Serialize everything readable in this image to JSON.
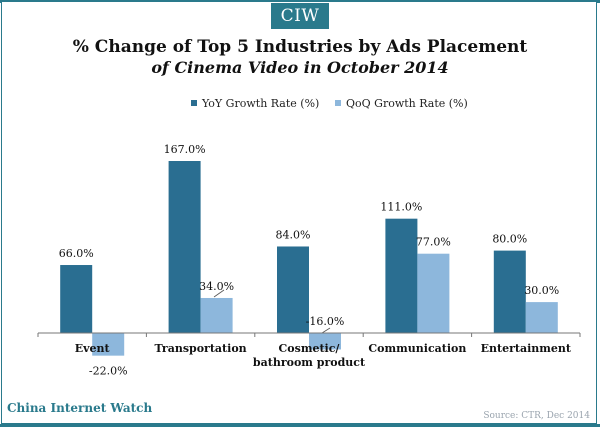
{
  "header": {
    "logo": "CIW",
    "title_line1": "% Change of Top 5 Industries by Ads Placement",
    "title_line2": "of Cinema Video in October 2014"
  },
  "colors": {
    "yoy": "#2a6e91",
    "qoq": "#8db7dc",
    "brand": "#2a7a8c"
  },
  "chart_data": {
    "type": "bar",
    "categories": [
      [
        "Event"
      ],
      [
        "Transportation"
      ],
      [
        "Cosmetic/",
        "bathroom product"
      ],
      [
        "Communication"
      ],
      [
        "Entertainment"
      ]
    ],
    "series": [
      {
        "name": "YoY Growth Rate (%)",
        "values": [
          66.0,
          167.0,
          84.0,
          111.0,
          80.0
        ]
      },
      {
        "name": "QoQ Growth Rate (%)",
        "values": [
          -22.0,
          34.0,
          -16.0,
          77.0,
          30.0
        ]
      }
    ],
    "data_labels": [
      [
        "66.0%",
        "167.0%",
        "84.0%",
        "111.0%",
        "80.0%"
      ],
      [
        "-22.0%",
        "34.0%",
        "-16.0%",
        "77.0%",
        "30.0%"
      ]
    ],
    "legend_position": "top",
    "gridlines": false,
    "ylim": [
      -22,
      167
    ]
  },
  "footer": {
    "brand": "China Internet Watch",
    "source": "Source: CTR, Dec 2014"
  }
}
